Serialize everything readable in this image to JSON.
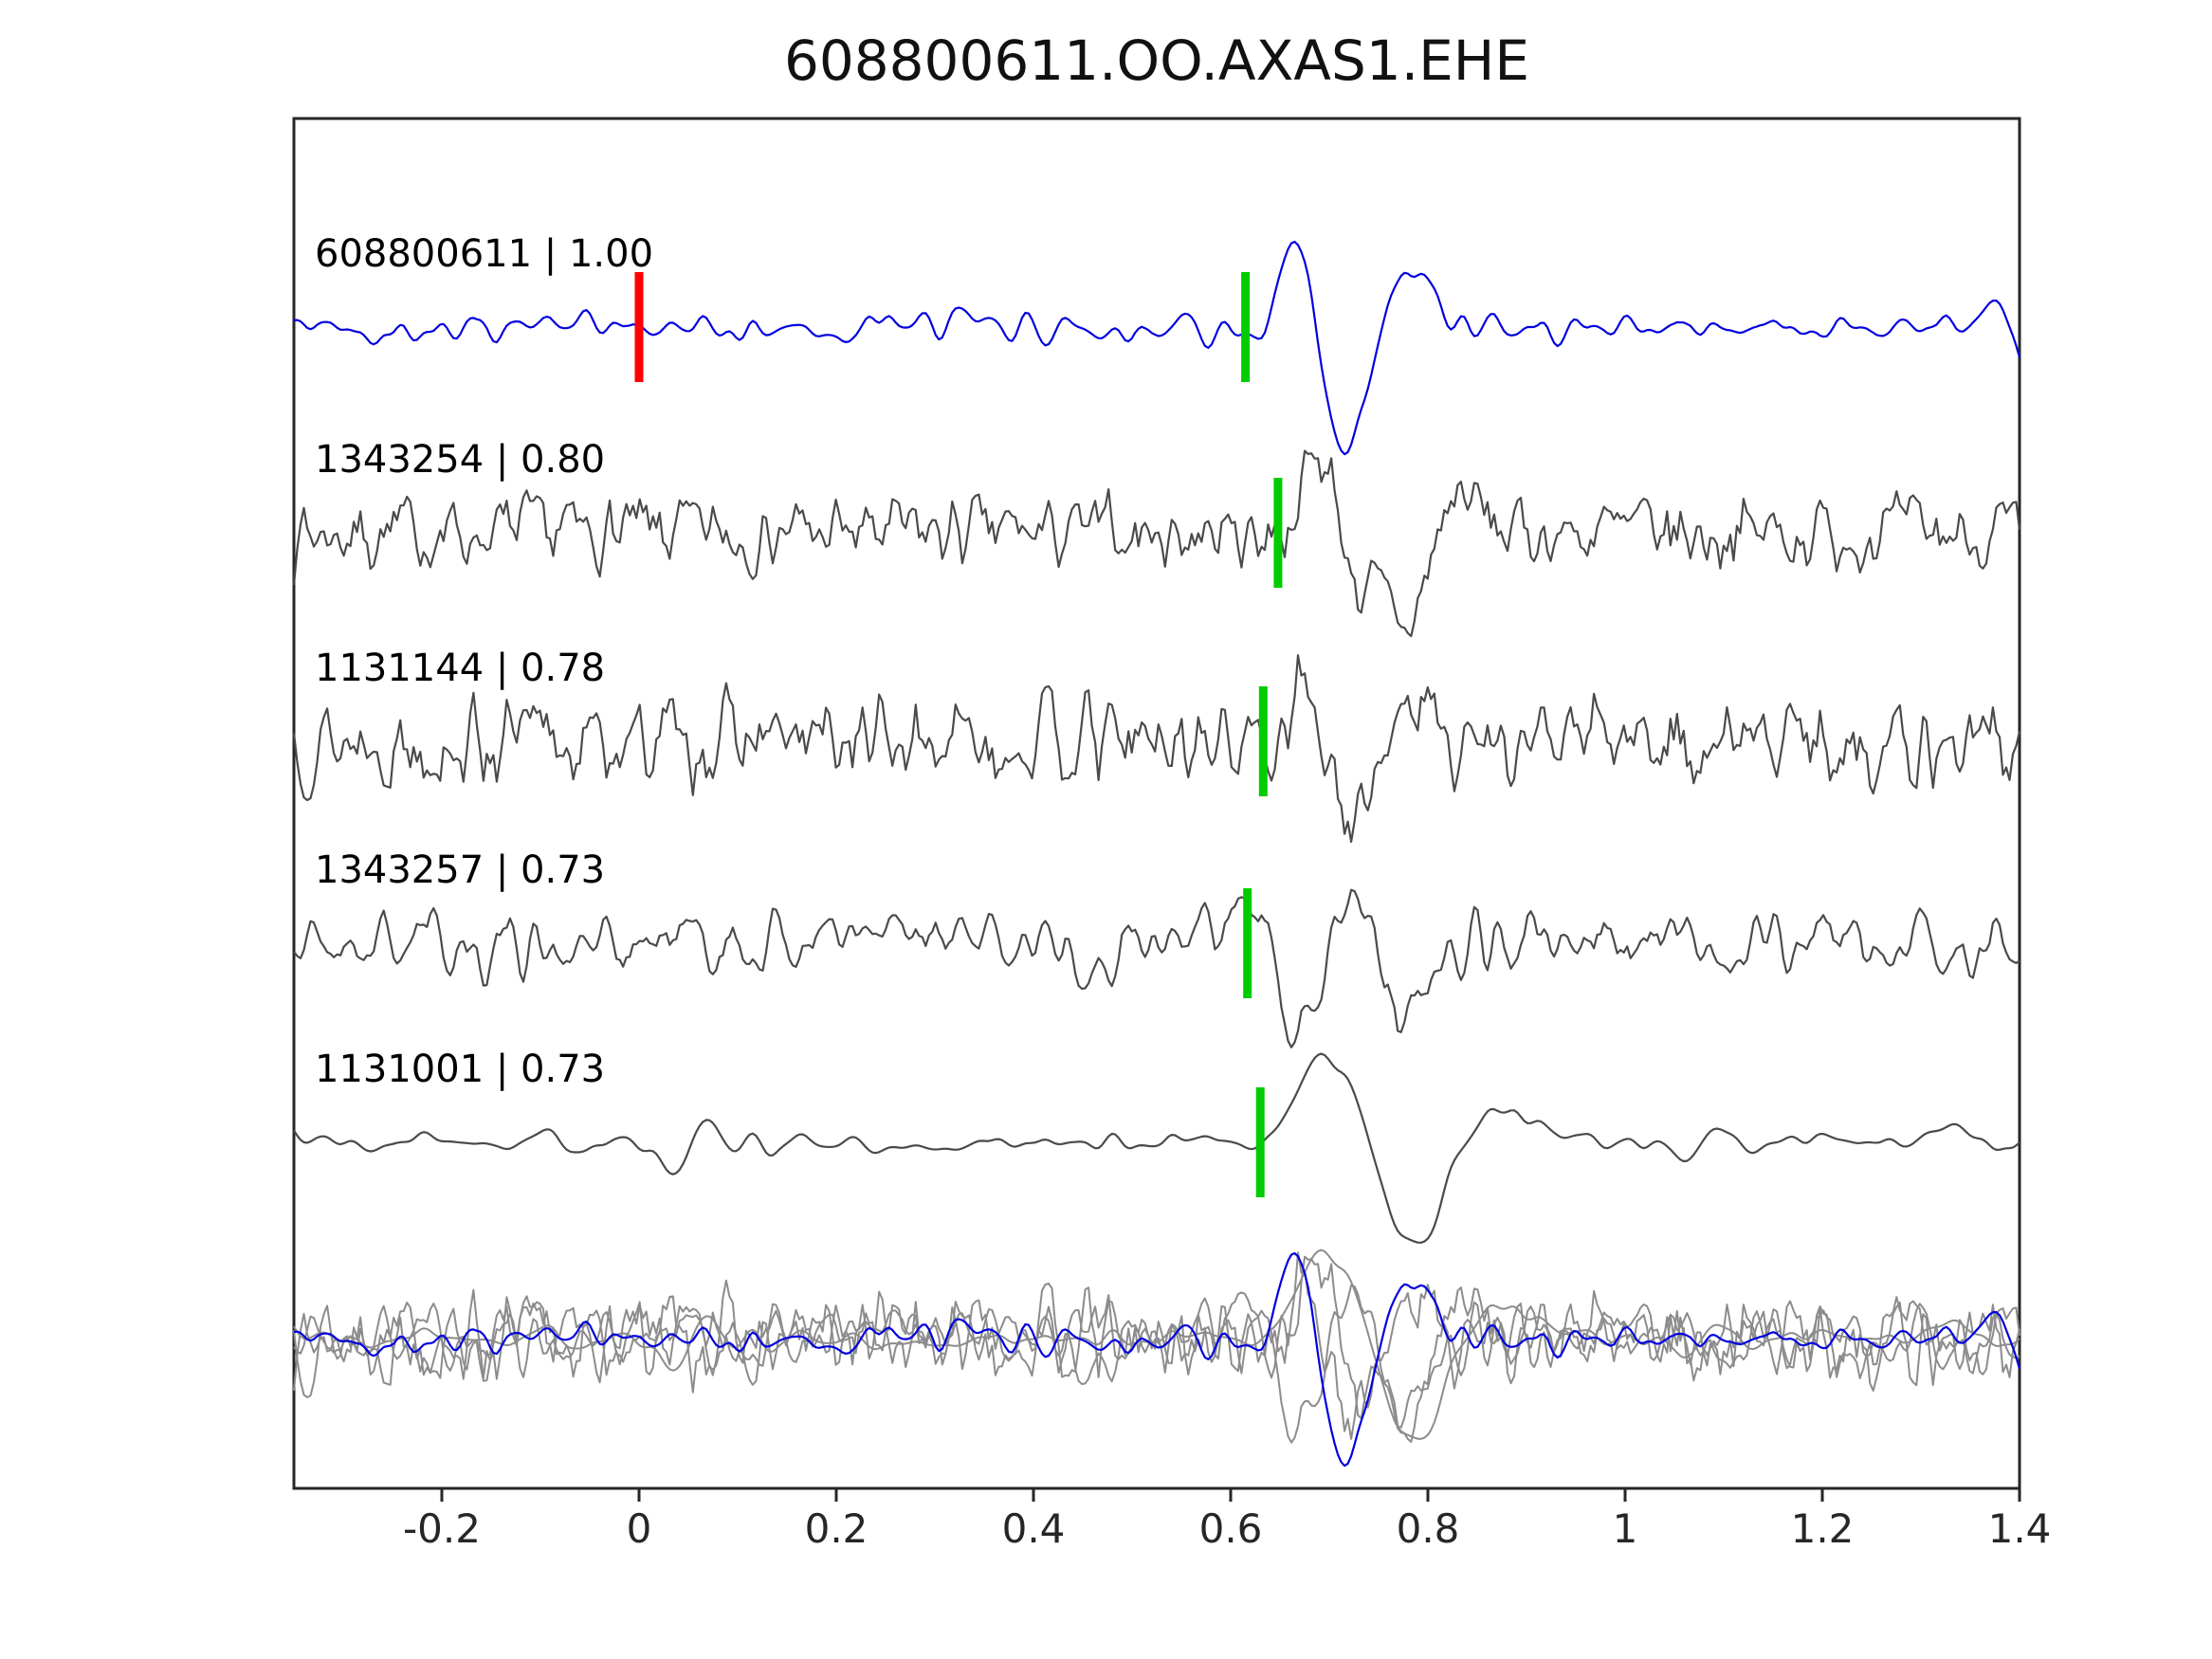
{
  "title": "608800611.OO.AXAS1.EHE",
  "chart_data": {
    "type": "line",
    "title": "608800611.OO.AXAS1.EHE",
    "description": "Reference seismic waveform (blue, top) compared with four best-matching detected waveforms (gray). Each label shows event ID | correlation. Green bars mark pick times, red bar marks zero time on the reference. Bottom row overlays all traces.",
    "xlim": [
      -0.35,
      1.4
    ],
    "x_ticks": [
      -0.2,
      0,
      0.2,
      0.4,
      0.6,
      0.8,
      1.0,
      1.2,
      1.4
    ],
    "x_tick_labels": [
      "-0.2",
      "0",
      "0.2",
      "0.4",
      "0.6",
      "0.8",
      "1",
      "1.2",
      "1.4"
    ],
    "xlabel": "",
    "ylabel": "",
    "grid": false,
    "legend": null,
    "series": [
      {
        "name": "608800611",
        "label": "608800611 | 1.00",
        "event_id": "608800611",
        "correlation": 1.0,
        "color": "#0000e0",
        "picks": [
          {
            "t": 0.0,
            "color": "#ff0000",
            "name": "origin-pick-marker"
          },
          {
            "t": 0.615,
            "color": "#00cc00",
            "name": "pick-marker"
          }
        ],
        "waveform": {
          "seed": 42,
          "smooth": 4,
          "noise_amp": 32,
          "pulses": [
            {
              "t": 0.635,
              "amp": -40,
              "w": 0.012
            },
            {
              "t": 0.665,
              "amp": 95,
              "w": 0.018
            },
            {
              "t": 0.715,
              "amp": -140,
              "w": 0.022
            },
            {
              "t": 0.785,
              "amp": 55,
              "w": 0.025
            }
          ]
        }
      },
      {
        "name": "1343254",
        "label": "1343254 | 0.80",
        "event_id": "1343254",
        "correlation": 0.8,
        "color": "#4a4a4a",
        "picks": [
          {
            "t": 0.648,
            "color": "#00cc00",
            "name": "pick-marker"
          }
        ],
        "waveform": {
          "seed": 7,
          "smooth": 1,
          "noise_amp": 55,
          "pulses": [
            {
              "t": 0.69,
              "amp": 85,
              "w": 0.016
            },
            {
              "t": 0.735,
              "amp": -55,
              "w": 0.018
            },
            {
              "t": 0.78,
              "amp": -95,
              "w": 0.02
            },
            {
              "t": 0.83,
              "amp": 45,
              "w": 0.02
            }
          ]
        }
      },
      {
        "name": "1131144",
        "label": "1131144 | 0.78",
        "event_id": "1131144",
        "correlation": 0.78,
        "color": "#4a4a4a",
        "picks": [
          {
            "t": 0.633,
            "color": "#00cc00",
            "name": "pick-marker"
          }
        ],
        "waveform": {
          "seed": 13,
          "smooth": 1,
          "noise_amp": 62,
          "pulses": [
            {
              "t": 0.675,
              "amp": 70,
              "w": 0.015
            },
            {
              "t": 0.72,
              "amp": -100,
              "w": 0.02
            },
            {
              "t": 0.78,
              "amp": 50,
              "w": 0.02
            }
          ]
        }
      },
      {
        "name": "1343257",
        "label": "1343257 | 0.73",
        "event_id": "1343257",
        "correlation": 0.73,
        "color": "#4a4a4a",
        "picks": [
          {
            "t": 0.617,
            "color": "#00cc00",
            "name": "pick-marker"
          }
        ],
        "waveform": {
          "seed": 21,
          "smooth": 2,
          "noise_amp": 48,
          "pulses": [
            {
              "t": 0.625,
              "amp": 85,
              "w": 0.014
            },
            {
              "t": 0.665,
              "amp": -95,
              "w": 0.02
            },
            {
              "t": 0.72,
              "amp": 55,
              "w": 0.02
            },
            {
              "t": 0.775,
              "amp": -70,
              "w": 0.018
            }
          ]
        }
      },
      {
        "name": "1131001",
        "label": "1131001 | 0.73",
        "event_id": "1131001",
        "correlation": 0.73,
        "color": "#4a4a4a",
        "picks": [
          {
            "t": 0.63,
            "color": "#00cc00",
            "name": "pick-marker"
          }
        ],
        "waveform": {
          "seed": 5,
          "smooth": 7,
          "noise_amp": 20,
          "pulses": [
            {
              "t": 0.035,
              "amp": -32,
              "w": 0.012
            },
            {
              "t": 0.065,
              "amp": 24,
              "w": 0.012
            },
            {
              "t": 0.7,
              "amp": 95,
              "w": 0.03
            },
            {
              "t": 0.785,
              "amp": -115,
              "w": 0.028
            },
            {
              "t": 0.87,
              "amp": 28,
              "w": 0.04
            }
          ]
        }
      }
    ],
    "overlay": {
      "label": "all traces overlaid",
      "member_color": "#8c8c8c",
      "reference_color": "#0000e0"
    }
  },
  "colors": {
    "reference_trace": "#0000e0",
    "member_trace": "#4a4a4a",
    "overlay_member": "#8c8c8c",
    "pick_green": "#00cc00",
    "pick_red": "#ff0000",
    "axis": "#262626",
    "background": "#ffffff"
  }
}
